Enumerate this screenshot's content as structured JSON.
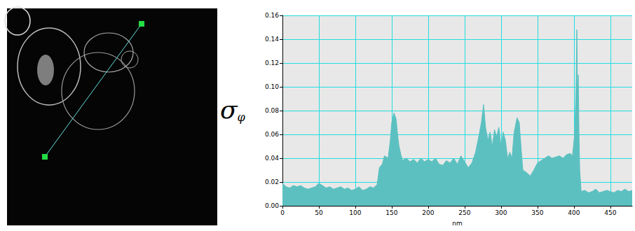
{
  "chart_data": {
    "type": "area",
    "y_label": "σφ",
    "x_label": "nm",
    "color": "#5cc0c0",
    "grid": true,
    "xlim": [
      0,
      480
    ],
    "xticks": [
      0,
      50,
      100,
      150,
      200,
      250,
      300,
      350,
      400,
      450
    ],
    "ylim": [
      0,
      0.16
    ],
    "yticks": [
      {
        "value": 0,
        "label": "0.00"
      },
      {
        "value": 0.02,
        "label": "0.02"
      },
      {
        "value": 0.04,
        "label": "0.04"
      },
      {
        "value": 0.06,
        "label": "0.06"
      },
      {
        "value": 0.08,
        "label": "0.08"
      },
      {
        "value": 0.1,
        "label": "0.10"
      },
      {
        "value": 0.12,
        "label": "0.12"
      },
      {
        "value": 0.14,
        "label": "0.14"
      },
      {
        "value": 0.16,
        "label": "0.16"
      }
    ],
    "x": [
      0,
      5,
      10,
      15,
      20,
      25,
      30,
      35,
      40,
      45,
      50,
      55,
      60,
      65,
      70,
      75,
      80,
      85,
      90,
      95,
      100,
      105,
      110,
      115,
      120,
      125,
      130,
      133,
      137,
      140,
      145,
      148,
      150,
      153,
      156,
      158,
      160,
      163,
      165,
      170,
      175,
      180,
      185,
      190,
      195,
      200,
      205,
      210,
      215,
      220,
      225,
      230,
      235,
      240,
      245,
      250,
      255,
      260,
      265,
      270,
      273,
      276,
      279,
      282,
      285,
      288,
      291,
      294,
      297,
      300,
      303,
      306,
      309,
      312,
      315,
      318,
      322,
      325,
      328,
      330,
      335,
      340,
      345,
      350,
      355,
      360,
      365,
      370,
      375,
      380,
      385,
      390,
      395,
      398,
      401,
      403,
      404,
      405,
      406,
      407,
      408,
      410,
      415,
      420,
      425,
      430,
      435,
      440,
      445,
      450,
      455,
      460,
      465,
      470,
      475,
      480
    ],
    "values": [
      0.019,
      0.016,
      0.015,
      0.017,
      0.016,
      0.017,
      0.015,
      0.014,
      0.015,
      0.016,
      0.019,
      0.017,
      0.015,
      0.016,
      0.014,
      0.015,
      0.016,
      0.014,
      0.015,
      0.013,
      0.014,
      0.016,
      0.013,
      0.014,
      0.016,
      0.015,
      0.018,
      0.032,
      0.035,
      0.042,
      0.04,
      0.055,
      0.07,
      0.078,
      0.073,
      0.06,
      0.05,
      0.042,
      0.038,
      0.04,
      0.037,
      0.039,
      0.036,
      0.04,
      0.037,
      0.039,
      0.037,
      0.04,
      0.035,
      0.034,
      0.038,
      0.036,
      0.04,
      0.035,
      0.042,
      0.037,
      0.032,
      0.036,
      0.045,
      0.06,
      0.07,
      0.085,
      0.065,
      0.055,
      0.062,
      0.05,
      0.064,
      0.058,
      0.066,
      0.05,
      0.062,
      0.055,
      0.04,
      0.045,
      0.04,
      0.062,
      0.074,
      0.07,
      0.045,
      0.03,
      0.028,
      0.025,
      0.03,
      0.036,
      0.038,
      0.04,
      0.042,
      0.04,
      0.041,
      0.042,
      0.04,
      0.043,
      0.044,
      0.042,
      0.06,
      0.1,
      0.148,
      0.09,
      0.11,
      0.06,
      0.03,
      0.012,
      0.013,
      0.011,
      0.012,
      0.014,
      0.011,
      0.012,
      0.013,
      0.012,
      0.011,
      0.013,
      0.012,
      0.014,
      0.012,
      0.013
    ]
  }
}
